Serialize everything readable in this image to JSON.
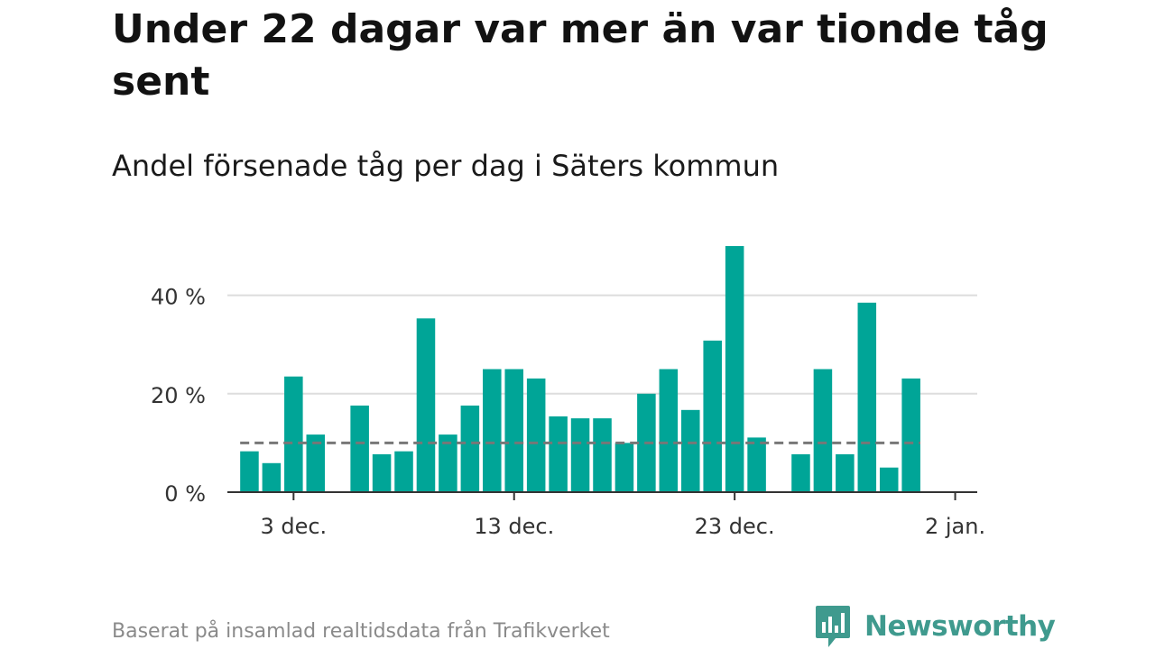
{
  "title": "Under 22 dagar var mer än var tionde tåg sent",
  "subtitle": "Andel försenade tåg per dag i Säters kommun",
  "source": "Baserat på insamlad realtidsdata från Trafikverket",
  "brand": {
    "name": "Newsworthy",
    "color": "#3f9a8e",
    "icon": "newsworthy-logo-icon"
  },
  "colors": {
    "bar": "#00a597",
    "reference_line": "#777777",
    "grid": "#dddddd",
    "axis": "#333333"
  },
  "chart_data": {
    "type": "bar",
    "title": "Under 22 dagar var mer än var tionde tåg sent",
    "subtitle": "Andel försenade tåg per dag i Säters kommun",
    "xlabel": "",
    "ylabel": "",
    "x_ticks": [
      {
        "date": "2022-12-03",
        "label": "3 dec."
      },
      {
        "date": "2022-12-13",
        "label": "13 dec."
      },
      {
        "date": "2022-12-23",
        "label": "23 dec."
      },
      {
        "date": "2023-01-02",
        "label": "2 jan."
      }
    ],
    "x_range": [
      "2022-11-30",
      "2023-01-03"
    ],
    "y_ticks": [
      {
        "value": 0,
        "label": "0 %"
      },
      {
        "value": 20,
        "label": "20 %"
      },
      {
        "value": 40,
        "label": "40 %"
      }
    ],
    "ylim": [
      0,
      50
    ],
    "grid": true,
    "reference_line": {
      "value": 10,
      "style": "dashed"
    },
    "x": [
      "2022-12-01",
      "2022-12-02",
      "2022-12-03",
      "2022-12-04",
      "2022-12-05",
      "2022-12-06",
      "2022-12-07",
      "2022-12-08",
      "2022-12-09",
      "2022-12-10",
      "2022-12-11",
      "2022-12-12",
      "2022-12-13",
      "2022-12-14",
      "2022-12-15",
      "2022-12-16",
      "2022-12-17",
      "2022-12-18",
      "2022-12-19",
      "2022-12-20",
      "2022-12-21",
      "2022-12-22",
      "2022-12-23",
      "2022-12-24",
      "2022-12-25",
      "2022-12-26",
      "2022-12-27",
      "2022-12-28",
      "2022-12-29",
      "2022-12-30",
      "2022-12-31",
      "2023-01-01"
    ],
    "values": [
      8.3,
      5.9,
      23.5,
      11.7,
      null,
      17.6,
      7.7,
      8.3,
      35.3,
      11.7,
      17.6,
      25.0,
      25.0,
      23.1,
      15.4,
      15.0,
      15.0,
      10.0,
      20.0,
      25.0,
      16.7,
      30.8,
      50.0,
      11.1,
      null,
      7.7,
      25.0,
      7.7,
      38.5,
      5.0,
      23.1,
      null
    ]
  }
}
